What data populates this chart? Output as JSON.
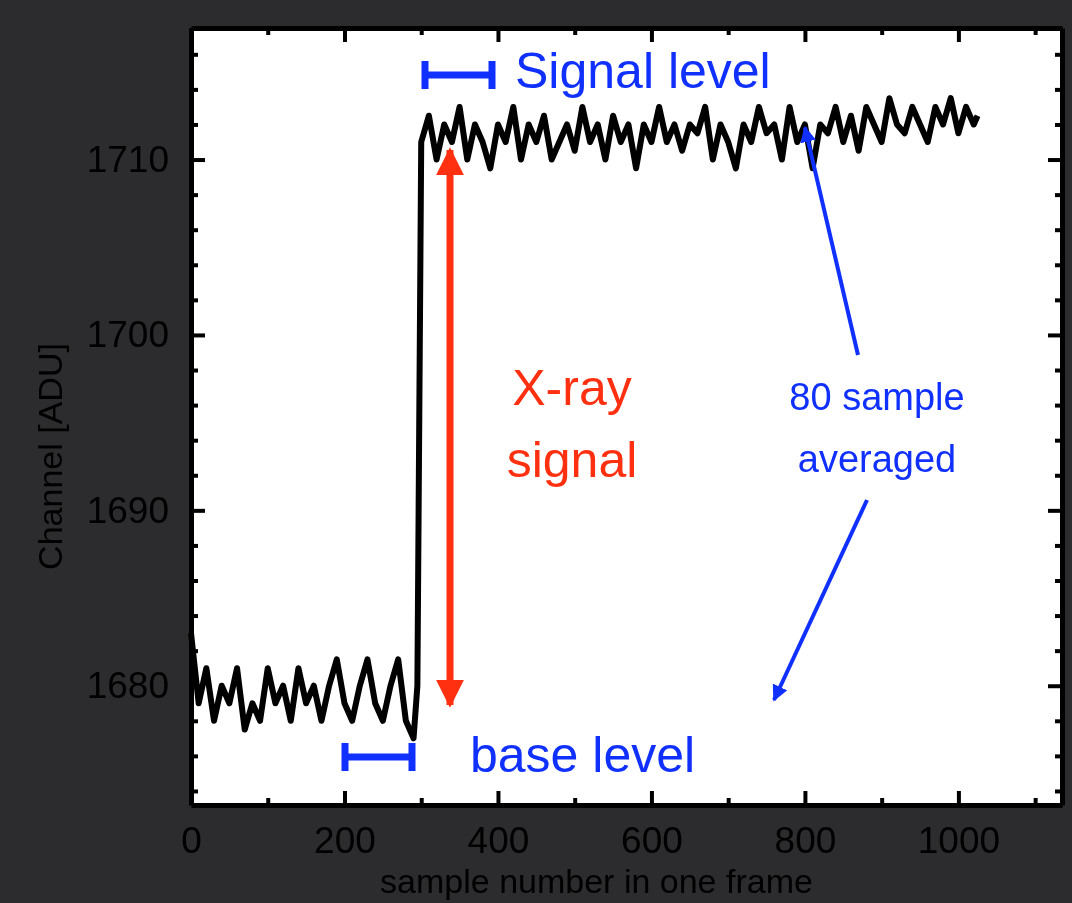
{
  "chart_data": {
    "type": "line",
    "xlabel": "sample number in one frame",
    "ylabel": "Channel [ADU]",
    "xlim": [
      0,
      1135
    ],
    "xticks": [
      0,
      {
        "value": 100,
        "label": null
      },
      200,
      {
        "value": 300,
        "label": null
      },
      400,
      {
        "value": 500,
        "label": null
      },
      600,
      {
        "value": 700,
        "label": null
      },
      800,
      {
        "value": 900,
        "label": null
      },
      1000,
      {
        "value": 1100,
        "label": null
      }
    ],
    "ylim": [
      1673.2,
      1717.5
    ],
    "yticks": [
      {
        "value": 1674,
        "label": null
      },
      {
        "value": 1676,
        "label": null
      },
      {
        "value": 1678,
        "label": null
      },
      1680,
      {
        "value": 1682,
        "label": null
      },
      {
        "value": 1684,
        "label": null
      },
      {
        "value": 1686,
        "label": null
      },
      {
        "value": 1688,
        "label": null
      },
      1690,
      {
        "value": 1692,
        "label": null
      },
      {
        "value": 1694,
        "label": null
      },
      {
        "value": 1696,
        "label": null
      },
      {
        "value": 1698,
        "label": null
      },
      1700,
      {
        "value": 1702,
        "label": null
      },
      {
        "value": 1704,
        "label": null
      },
      {
        "value": 1706,
        "label": null
      },
      {
        "value": 1708,
        "label": null
      },
      1710,
      {
        "value": 1712,
        "label": null
      },
      {
        "value": 1714,
        "label": null
      },
      {
        "value": 1716,
        "label": null
      }
    ],
    "grid": false,
    "marker": "none",
    "line_style": "solid",
    "x": [
      0,
      10,
      20,
      30,
      40,
      50,
      60,
      70,
      80,
      90,
      100,
      110,
      120,
      130,
      140,
      150,
      160,
      170,
      180,
      190,
      200,
      210,
      220,
      230,
      240,
      250,
      260,
      270,
      280,
      290,
      295,
      300,
      310,
      320,
      330,
      340,
      350,
      360,
      370,
      380,
      390,
      400,
      410,
      420,
      430,
      440,
      450,
      460,
      470,
      480,
      490,
      500,
      510,
      520,
      530,
      540,
      550,
      560,
      570,
      580,
      590,
      600,
      610,
      620,
      630,
      640,
      650,
      660,
      670,
      680,
      690,
      700,
      710,
      720,
      730,
      740,
      750,
      760,
      770,
      780,
      790,
      800,
      810,
      820,
      830,
      840,
      850,
      860,
      870,
      880,
      890,
      900,
      910,
      920,
      930,
      940,
      950,
      960,
      970,
      980,
      990,
      1000,
      1010,
      1020,
      1025
    ],
    "series": [
      {
        "color": "#000000",
        "values": [
          1683,
          1679,
          1681,
          1678,
          1680,
          1679,
          1681,
          1677.5,
          1679,
          1678,
          1681,
          1679,
          1680,
          1678,
          1681,
          1679,
          1680,
          1678,
          1680,
          1681.5,
          1679,
          1678,
          1680,
          1681.5,
          1679,
          1678,
          1680,
          1681.5,
          1678,
          1677,
          1680,
          1711,
          1712.5,
          1710,
          1712,
          1711,
          1713,
          1710,
          1712,
          1711,
          1709.5,
          1712,
          1711,
          1713,
          1710,
          1712,
          1711,
          1712.5,
          1710,
          1711,
          1712,
          1710.5,
          1713,
          1711,
          1712,
          1710,
          1712.5,
          1711,
          1712,
          1709.5,
          1712,
          1711,
          1713,
          1711,
          1712,
          1710.5,
          1712,
          1711.5,
          1713,
          1710,
          1712,
          1711,
          1709.5,
          1712,
          1711,
          1713,
          1711.5,
          1712,
          1710,
          1713,
          1711,
          1712,
          1709.5,
          1712,
          1711.5,
          1713,
          1711,
          1712.5,
          1710.5,
          1713,
          1712,
          1711,
          1713.5,
          1712,
          1711.5,
          1713,
          1712,
          1711,
          1713,
          1712,
          1713.5,
          1711.5,
          1713,
          1712,
          1712.5
        ]
      }
    ],
    "annotations": [
      "Signal level",
      "base level",
      "X-ray\nsignal",
      {
        "text": "80 sample\naveraged",
        "x": 800,
        "y": 1712
      }
    ]
  }
}
